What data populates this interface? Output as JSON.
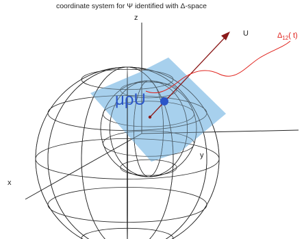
{
  "title": "coordinate system for Ψ identified with Δ-space",
  "axes": {
    "z_label": "z",
    "x_label": "x",
    "y_label": "y"
  },
  "vector": {
    "label": "U"
  },
  "curve": {
    "label_main": "Δ",
    "label_sub": "12",
    "label_tail": "( t)"
  },
  "plane": {
    "label": "μρU"
  },
  "colors": {
    "wireframe": "#222222",
    "plane_fill": "#9ecbec",
    "vector": "#8b1a1a",
    "curve": "#e0201a",
    "point": "#2a55c8",
    "plane_text": "#2a55c8"
  },
  "icons": {
    "sphere": "wireframe-sphere-icon",
    "point": "state-point-icon"
  }
}
